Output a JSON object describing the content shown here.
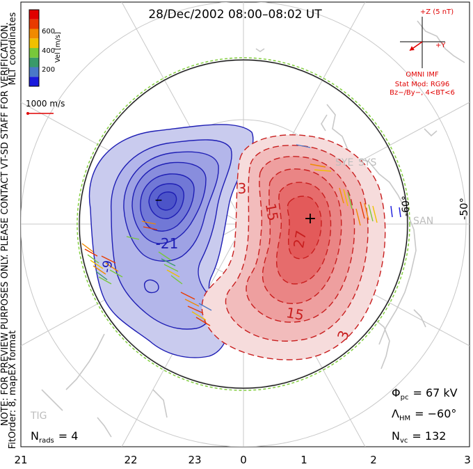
{
  "title": "28/Dec/2002 08:00–08:02 UT",
  "side_note": "NOTE: FOR PREVIEW PURPOSES ONLY. PLEASE CONTACT VT-SD STAFF FOR VERIFICATION.",
  "fit_order": "FitOrder: 8, mapEX format",
  "coords_label": "MLT coordinates",
  "colorbar": {
    "label": "Vel [m/s]",
    "ticks": [
      "600",
      "400",
      "200"
    ],
    "colors": [
      "#1a1adc",
      "#4a78c8",
      "#3a9a6a",
      "#78c83a",
      "#f0c000",
      "#f08a00",
      "#e83a00",
      "#e00000"
    ]
  },
  "reference_vector": {
    "label": "1000 m/s",
    "color": "#e00000"
  },
  "imf": {
    "z_label": "+Z (5 nT)",
    "y_label": "+Y",
    "title": "OMNI IMF",
    "model": "Stat Mod: RG96",
    "condition": "Bz−/By−, 4<BT<6",
    "clock_angle_deg": 235
  },
  "stations": [
    "SYE",
    "SYS",
    "SAN",
    "TIG"
  ],
  "mlt_labels": [
    "21",
    "22",
    "23",
    "0",
    "1",
    "2",
    "3"
  ],
  "lat_labels": {
    "outer": "-50°",
    "inner": "-60°"
  },
  "contours": {
    "negative_labels": [
      "-21",
      "-9"
    ],
    "positive_labels": [
      "3",
      "15",
      "27",
      "15",
      "3"
    ],
    "min_marker": "–",
    "max_marker": "+",
    "negative_color": "#1e1eb4",
    "positive_color": "#c81e1e"
  },
  "stats": {
    "phi_pc_label": "Φ",
    "phi_pc_sub": "pc",
    "phi_pc_value": "= 67 kV",
    "lambda_hm_label": "Λ",
    "lambda_hm_sub": "HM",
    "lambda_hm_value": "= −60°",
    "n_vc_label": "N",
    "n_vc_sub": "vc",
    "n_vc_value": "= 132",
    "n_rads_label": "N",
    "n_rads_sub": "rads",
    "n_rads_value": "= 4"
  }
}
